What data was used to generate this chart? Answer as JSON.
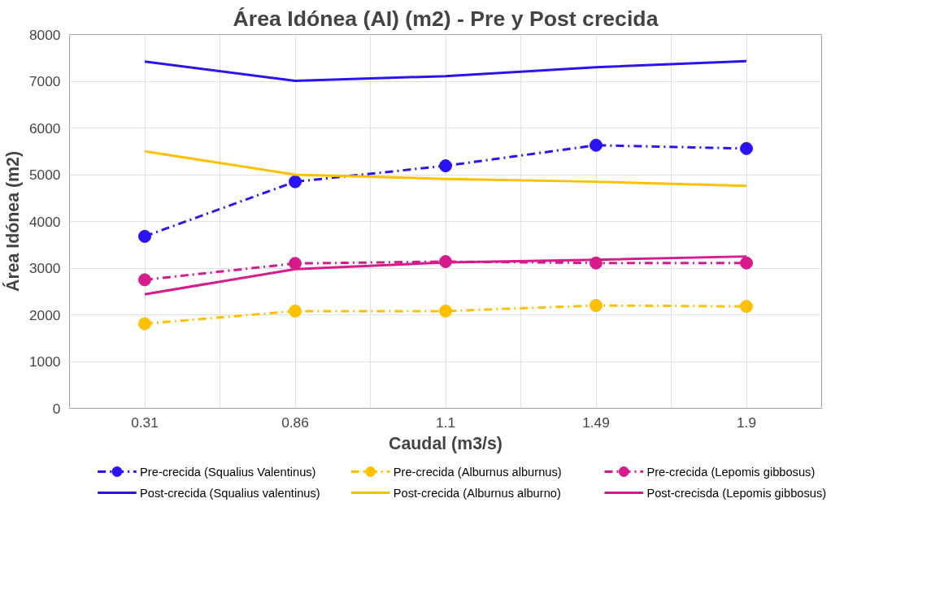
{
  "chart_data": {
    "type": "line",
    "title": "Área Idónea (AI) (m2) - Pre y Post crecida",
    "xlabel": "Caudal (m3/s)",
    "ylabel": "Área Idónea (m2)",
    "categories": [
      "0.31",
      "0.86",
      "1.1",
      "1.49",
      "1.9"
    ],
    "ylim": [
      0,
      8000
    ],
    "yticks": [
      0,
      1000,
      2000,
      3000,
      4000,
      5000,
      6000,
      7000,
      8000
    ],
    "grid": true,
    "legend": "bottom",
    "series": [
      {
        "name": "Pre-crecida (Squalius Valentinus)",
        "color": "#2a14f5",
        "marker": "circle",
        "line_style": "dashed",
        "values": [
          3680,
          4850,
          5190,
          5630,
          5560
        ]
      },
      {
        "name": "Pre-crecida (Alburnus alburnus)",
        "color": "#ffc000",
        "marker": "circle",
        "line_style": "dashed",
        "values": [
          1810,
          2080,
          2080,
          2200,
          2180
        ]
      },
      {
        "name": "Pre-crecida (Lepomis gibbosus)",
        "color": "#d81b8c",
        "marker": "circle",
        "line_style": "dashed",
        "values": [
          2750,
          3100,
          3140,
          3110,
          3110
        ]
      },
      {
        "name": "Post-crecida (Squalius valentinus)",
        "color": "#2a14f5",
        "marker": "none",
        "line_style": "solid",
        "values": [
          7420,
          7010,
          7110,
          7300,
          7430
        ]
      },
      {
        "name": "Post-crecida (Alburnus alburno)",
        "color": "#ffc000",
        "marker": "none",
        "line_style": "solid",
        "values": [
          5500,
          5000,
          4910,
          4850,
          4760
        ]
      },
      {
        "name": "Post-crecisda (Lepomis gibbosus)",
        "color": "#d81b8c",
        "marker": "none",
        "line_style": "solid",
        "values": [
          2440,
          2980,
          3120,
          3180,
          3250
        ]
      }
    ]
  }
}
